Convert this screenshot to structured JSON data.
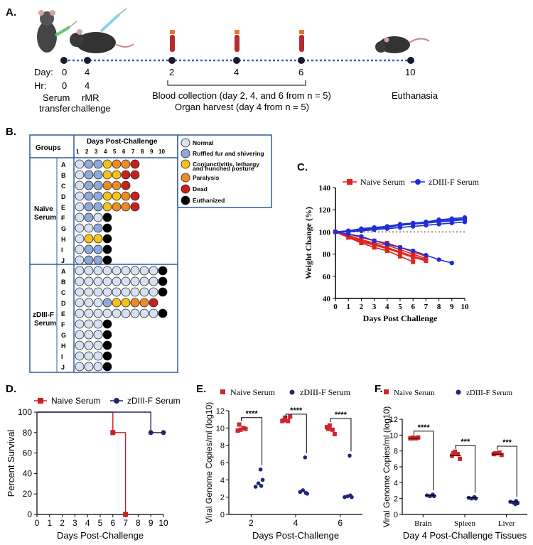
{
  "panelA": {
    "label": "A.",
    "day_label": "Day:",
    "hr_label": "Hr:",
    "timeline": [
      {
        "day": "0",
        "hr": "0"
      },
      {
        "day": "4"
      },
      {
        "day": "2"
      },
      {
        "day": "4"
      },
      {
        "day": "6"
      },
      {
        "day": "10"
      }
    ],
    "hr4": "4",
    "serum_line1": "Serum",
    "serum_line2": "transfer",
    "rmr_line1": "rMR",
    "rmr_line2": "challenge",
    "blood_line1": "Blood collection (day 2, 4, and 6 from n = 5)",
    "blood_line2": "Organ harvest (day 4 from n = 5)",
    "euthanasia": "Euthanasia"
  },
  "panelB": {
    "label": "B.",
    "groups_header": "Groups",
    "days_header": "Days Post-Challenge",
    "day_numbers": [
      "1",
      "2",
      "3",
      "4",
      "5",
      "6",
      "7",
      "8",
      "9",
      "10"
    ],
    "group1_name_line1": "Naïve",
    "group1_name_line2": "Serum",
    "group2_name_line1": "zDIII-F",
    "group2_name_line2": "Serum",
    "row_letters": [
      "A",
      "B",
      "C",
      "D",
      "E",
      "F",
      "G",
      "H",
      "I",
      "J"
    ],
    "status_colors": {
      "N": "#d6e2f3",
      "R": "#8eaadb",
      "C": "#f6c21a",
      "P": "#f08a24",
      "D": "#c8201f",
      "E": "#000000"
    },
    "group1_rows": [
      "NRRCPPD",
      "NRRCCDD",
      "NRRPPD",
      "NRRCCPD",
      "NRRCPPD",
      "NRNE",
      "NNRE",
      "NCCE",
      "NRRE",
      "NRRE"
    ],
    "group2_rows": [
      "NNNNNNNNNE",
      "NNNNNNNNNE",
      "NNNNNNNNNE",
      "NNNRCCPPD",
      "NNNNNNNNNE",
      "NNNE",
      "NNNE",
      "NNNE",
      "NNNE",
      "NNNE"
    ],
    "legend": [
      {
        "code": "N",
        "label": "Normal"
      },
      {
        "code": "R",
        "label": "Ruffled fur and shivering"
      },
      {
        "code": "C",
        "label": "Conjunctivitis, lethargy"
      },
      {
        "code": "P",
        "label": "Paralysis"
      },
      {
        "code": "D",
        "label": "Dead"
      },
      {
        "code": "E",
        "label": "Euthanized"
      }
    ],
    "legend_c_line2": "and hunched posture"
  },
  "panelC": {
    "label": "C.",
    "chart_data": {
      "type": "line",
      "xlabel": "Days Post Challenge",
      "ylabel": "Weight Change (%)",
      "xlim": [
        0,
        10
      ],
      "ylim": [
        40,
        140
      ],
      "xticks": [
        "0",
        "1",
        "2",
        "3",
        "4",
        "5",
        "6",
        "7",
        "8",
        "9",
        "10"
      ],
      "yticks": [
        "40",
        "60",
        "80",
        "100",
        "120",
        "140"
      ],
      "reference_line": 100,
      "series": [
        {
          "name": "Naive Serum",
          "color": "#e0231e",
          "marker": "square",
          "lines": [
            {
              "x": [
                0,
                1,
                2,
                3,
                4,
                5,
                6,
                7
              ],
              "y": [
                100,
                95,
                91,
                88,
                85,
                81,
                77,
                74
              ]
            },
            {
              "x": [
                0,
                1,
                2,
                3,
                4,
                5,
                6,
                7
              ],
              "y": [
                100,
                96,
                92,
                89,
                86,
                82,
                78,
                75
              ]
            },
            {
              "x": [
                0,
                1,
                2,
                3,
                4,
                5,
                6,
                7
              ],
              "y": [
                100,
                97,
                93,
                90,
                88,
                84,
                80,
                76
              ]
            },
            {
              "x": [
                0,
                1,
                2,
                3,
                4,
                5,
                6
              ],
              "y": [
                100,
                95,
                90,
                86,
                83,
                78,
                73
              ]
            },
            {
              "x": [
                0,
                1,
                2,
                3,
                4,
                5,
                6,
                7
              ],
              "y": [
                100,
                98,
                95,
                92,
                90,
                86,
                82,
                78
              ]
            }
          ]
        },
        {
          "name": "zDIII-F Serum",
          "color": "#1f2fd8",
          "marker": "circle",
          "lines": [
            {
              "x": [
                0,
                1,
                2,
                3,
                4,
                5,
                6,
                7,
                8,
                9,
                10
              ],
              "y": [
                100,
                101,
                103,
                104,
                105,
                107,
                108,
                109,
                111,
                112,
                113
              ]
            },
            {
              "x": [
                0,
                1,
                2,
                3,
                4,
                5,
                6,
                7,
                8,
                9,
                10
              ],
              "y": [
                100,
                101,
                102,
                103,
                104,
                106,
                107,
                108,
                109,
                110,
                111
              ]
            },
            {
              "x": [
                0,
                1,
                2,
                3,
                4,
                5,
                6,
                7,
                8,
                9,
                10
              ],
              "y": [
                100,
                100,
                101,
                102,
                103,
                104,
                105,
                106,
                107,
                108,
                109
              ]
            },
            {
              "x": [
                0,
                1,
                2,
                3,
                4,
                5,
                6,
                7,
                8,
                9
              ],
              "y": [
                100,
                98,
                96,
                92,
                89,
                86,
                83,
                79,
                75,
                72
              ]
            },
            {
              "x": [
                0,
                1,
                2,
                3,
                4,
                5,
                6,
                7,
                8,
                9,
                10
              ],
              "y": [
                100,
                101,
                102,
                104,
                105,
                106,
                108,
                109,
                110,
                111,
                112
              ]
            }
          ]
        }
      ]
    }
  },
  "panelD": {
    "label": "D.",
    "chart_data": {
      "type": "line",
      "xlabel": "Days Post-Challenge",
      "ylabel": "Percent Survival",
      "xlim": [
        0,
        10
      ],
      "ylim": [
        0,
        100
      ],
      "xticks": [
        "0",
        "1",
        "2",
        "3",
        "4",
        "5",
        "6",
        "7",
        "8",
        "9",
        "10"
      ],
      "yticks": [
        "0",
        "20",
        "40",
        "60",
        "80",
        "100"
      ],
      "series": [
        {
          "name": "Naive Serum",
          "color": "#c8201f",
          "marker": "square",
          "steps": [
            [
              0,
              100
            ],
            [
              6,
              100
            ],
            [
              6,
              80
            ],
            [
              7,
              80
            ],
            [
              7,
              0
            ]
          ],
          "markers": [
            [
              6,
              80
            ],
            [
              7,
              0
            ]
          ]
        },
        {
          "name": "zDIII-F Serum",
          "color": "#1f2766",
          "marker": "circle",
          "steps": [
            [
              0,
              100
            ],
            [
              9,
              100
            ],
            [
              9,
              80
            ],
            [
              10,
              80
            ]
          ],
          "markers": [
            [
              9,
              80
            ],
            [
              10,
              80
            ]
          ]
        }
      ]
    }
  },
  "panelE": {
    "label": "E.",
    "chart_data": {
      "type": "scatter",
      "xlabel": "Days Post-Challenge",
      "ylabel": "Viral Genome Copies/ml (log10)",
      "ylim": [
        0,
        12
      ],
      "categories": [
        "2",
        "4",
        "6"
      ],
      "yticks": [
        "0",
        "2",
        "4",
        "6",
        "8",
        "10",
        "12"
      ],
      "series": [
        {
          "name": "Naive Serum",
          "color": "#d0242a",
          "marker": "square",
          "values": [
            [
              9.7,
              9.8,
              10.0,
              9.9,
              10.4
            ],
            [
              10.8,
              11.2,
              10.8,
              11.3,
              10.9
            ],
            [
              10.1,
              10.3,
              9.8,
              9.3,
              9.9
            ]
          ]
        },
        {
          "name": "zDIII-F Serum",
          "color": "#1f2675",
          "marker": "circle",
          "values": [
            [
              3.2,
              3.6,
              3.3,
              5.2,
              4.0
            ],
            [
              2.6,
              2.8,
              2.5,
              6.6,
              2.4
            ],
            [
              2.0,
              2.1,
              2.2,
              6.8,
              2.0
            ]
          ]
        }
      ],
      "significance": [
        "****",
        "****",
        "****"
      ]
    }
  },
  "panelF": {
    "label": "F.",
    "chart_data": {
      "type": "scatter",
      "xlabel": "Day 4 Post-Challenge Tissues",
      "ylabel": "Viral Genome Copies/ml (log10)",
      "ylim": [
        0,
        12
      ],
      "categories": [
        "Brain",
        "Spleen",
        "Liver"
      ],
      "yticks": [
        "0",
        "2",
        "4",
        "6",
        "8",
        "10",
        "12"
      ],
      "series": [
        {
          "name": "Naive Serum",
          "color": "#d0242a",
          "marker": "square",
          "values": [
            [
              9.6,
              9.7,
              9.6,
              9.7,
              9.6
            ],
            [
              7.4,
              7.9,
              7.6,
              7.0,
              7.7
            ],
            [
              7.6,
              7.7,
              7.8,
              7.5,
              7.7
            ]
          ]
        },
        {
          "name": "zDIII-F Serum",
          "color": "#1f2675",
          "marker": "circle",
          "values": [
            [
              2.4,
              2.3,
              2.5,
              2.4,
              2.3
            ],
            [
              2.1,
              2.0,
              2.2,
              2.1,
              2.0
            ],
            [
              1.6,
              1.5,
              1.7,
              1.3,
              1.4
            ]
          ]
        }
      ],
      "significance": [
        "****",
        "***",
        "***"
      ]
    }
  }
}
